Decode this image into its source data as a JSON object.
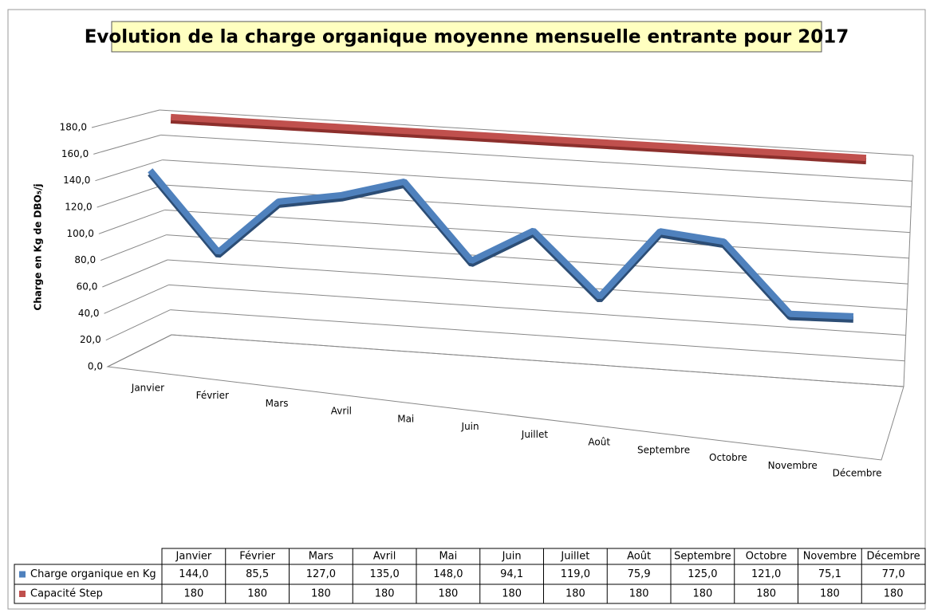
{
  "chart_data": {
    "type": "line3d",
    "title": "Evolution de la charge organique moyenne mensuelle entrante pour 2017",
    "y_axis_label": "Charge en Kg de DBO₅/j",
    "categories": [
      "Janvier",
      "Février",
      "Mars",
      "Avril",
      "Mai",
      "Juin",
      "Juillet",
      "Août",
      "Septembre",
      "Octobre",
      "Novembre",
      "Décembre"
    ],
    "series": [
      {
        "name": "Charge organique en Kg",
        "color": "#4f81bd",
        "values": [
          144,
          85.5,
          127,
          135,
          148,
          94.1,
          119,
          75.9,
          125,
          121,
          75.1,
          77
        ],
        "value_labels": [
          "144,0",
          "85,5",
          "127,0",
          "135,0",
          "148,0",
          "94,1",
          "119,0",
          "75,9",
          "125,0",
          "121,0",
          "75,1",
          "77,0"
        ]
      },
      {
        "name": "Capacité Step",
        "color": "#c0504d",
        "values": [
          180,
          180,
          180,
          180,
          180,
          180,
          180,
          180,
          180,
          180,
          180,
          180
        ]
      }
    ],
    "ylim": [
      0,
      180
    ],
    "yticks": [
      {
        "value": 0,
        "label": "0,0"
      },
      {
        "value": 20,
        "label": "20,0"
      },
      {
        "value": 40,
        "label": "40,0"
      },
      {
        "value": 60,
        "label": "60,0"
      },
      {
        "value": 80,
        "label": "80,0"
      },
      {
        "value": 100,
        "label": "100,0"
      },
      {
        "value": 120,
        "label": "120,0"
      },
      {
        "value": 140,
        "label": "140,0"
      },
      {
        "value": 160,
        "label": "160,0"
      },
      {
        "value": 180,
        "label": "180,0"
      }
    ],
    "grid": true,
    "data_table": true
  }
}
